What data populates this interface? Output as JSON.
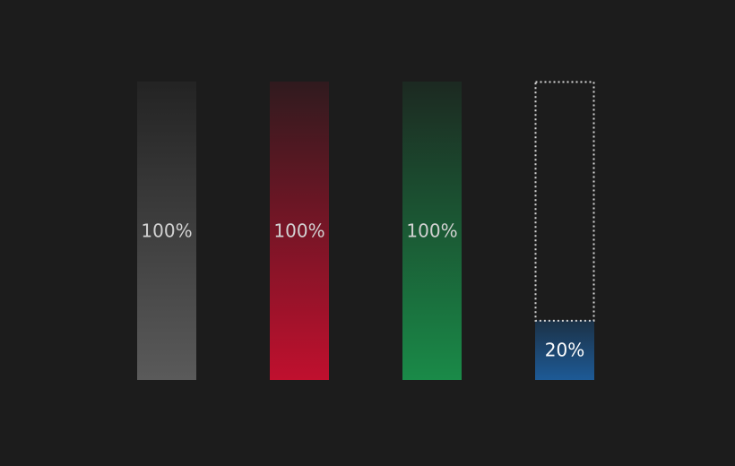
{
  "chart_data": {
    "type": "bar",
    "categories": [
      "",
      "",
      "",
      ""
    ],
    "values": [
      100,
      100,
      100,
      20
    ],
    "data_labels": [
      "100%",
      "100%",
      "100%",
      "20%"
    ],
    "ylim": [
      0,
      100
    ],
    "grid": true,
    "colors": [
      "#5a5a5a",
      "#c0102e",
      "#1a8a48",
      "#1d5a96"
    ],
    "title": "",
    "xlabel": "",
    "ylabel": ""
  }
}
